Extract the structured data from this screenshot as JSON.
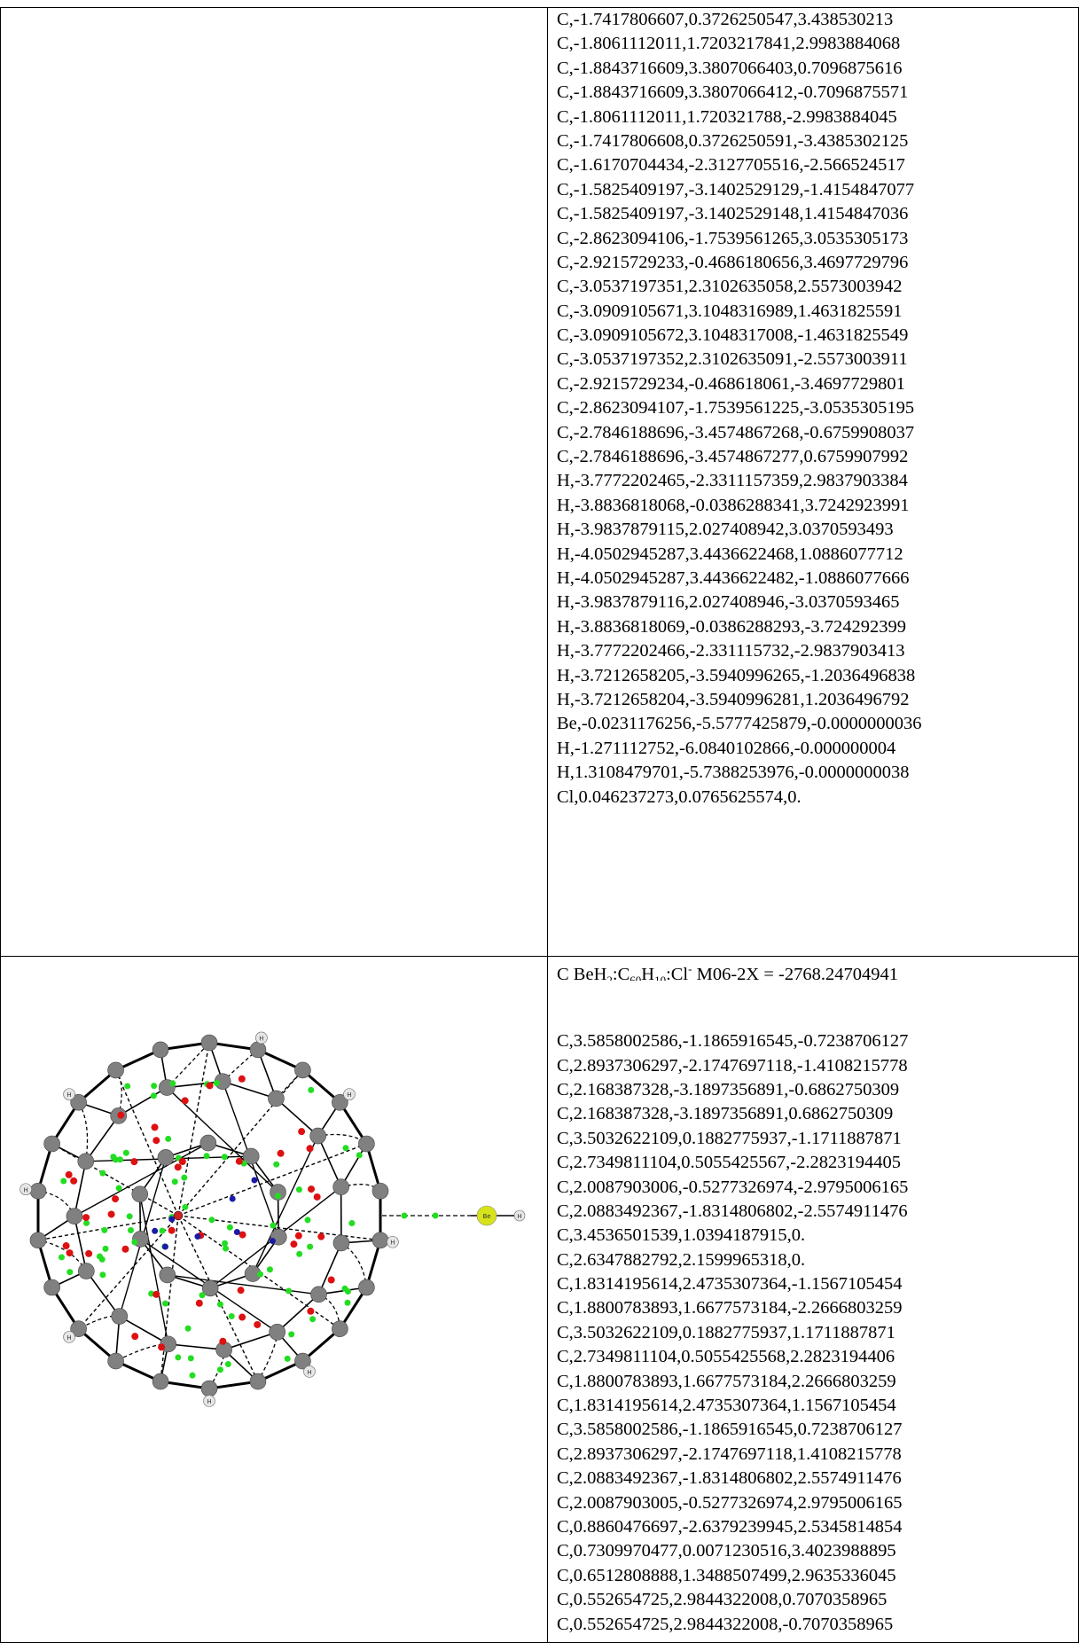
{
  "upper_coords": [
    "C,-1.7417806607,0.3726250547,3.438530213",
    "C,-1.8061112011,1.7203217841,2.9983884068",
    "C,-1.8843716609,3.3807066403,0.7096875616",
    "C,-1.8843716609,3.3807066412,-0.7096875571",
    "C,-1.8061112011,1.720321788,-2.9983884045",
    "C,-1.7417806608,0.3726250591,-3.4385302125",
    "C,-1.6170704434,-2.3127705516,-2.566524517",
    "C,-1.5825409197,-3.1402529129,-1.4154847077",
    "C,-1.5825409197,-3.1402529148,1.4154847036",
    "C,-2.8623094106,-1.7539561265,3.0535305173",
    "C,-2.9215729233,-0.4686180656,3.4697729796",
    "C,-3.0537197351,2.3102635058,2.5573003942",
    "C,-3.0909105671,3.1048316989,1.4631825591",
    "C,-3.0909105672,3.1048317008,-1.4631825549",
    "C,-3.0537197352,2.3102635091,-2.5573003911",
    "C,-2.9215729234,-0.468618061,-3.4697729801",
    "C,-2.8623094107,-1.7539561225,-3.0535305195",
    "C,-2.7846188696,-3.4574867268,-0.6759908037",
    "C,-2.7846188696,-3.4574867277,0.6759907992",
    "H,-3.7772202465,-2.3311157359,2.9837903384",
    "H,-3.8836818068,-0.0386288341,3.7242923991",
    "H,-3.9837879115,2.027408942,3.0370593493",
    "H,-4.0502945287,3.4436622468,1.0886077712",
    "H,-4.0502945287,3.4436622482,-1.0886077666",
    "H,-3.9837879116,2.027408946,-3.0370593465",
    "H,-3.8836818069,-0.0386288293,-3.724292399",
    "H,-3.7772202466,-2.331115732,-2.9837903413",
    "H,-3.7212658205,-3.5940996265,-1.2036496838",
    "H,-3.7212658204,-3.5940996281,1.2036496792",
    "Be,-0.0231176256,-5.5777425879,-0.0000000036",
    "H,-1.271112752,-6.0840102866,-0.000000004",
    "H,1.3108479701,-5.7388253976,-0.0000000038",
    "Cl,0.046237273,0.0765625574,0."
  ],
  "lower_title": {
    "prefix": "C  BeH",
    "sub1": "2",
    "mid1": ":C",
    "sub2": "60",
    "mid2": "H",
    "sub3": "10",
    "mid3": ":Cl",
    "sup1": "-",
    "suffix": " M06-2X = -2768.24704941"
  },
  "lower_coords": [
    "C,3.5858002586,-1.1865916545,-0.7238706127",
    "C,2.8937306297,-2.1747697118,-1.4108215778",
    "C,2.168387328,-3.1897356891,-0.6862750309",
    "C,2.168387328,-3.1897356891,0.6862750309",
    "C,3.5032622109,0.1882775937,-1.1711887871",
    "C,2.7349811104,0.5055425567,-2.2823194405",
    "C,2.0087903006,-0.5277326974,-2.9795006165",
    "C,2.0883492367,-1.8314806802,-2.5574911476",
    "C,3.4536501539,1.0394187915,0.",
    "C,2.6347882792,2.1599965318,0.",
    "C,1.8314195614,2.4735307364,-1.1567105454",
    "C,1.8800783893,1.6677573184,-2.2666803259",
    "C,3.5032622109,0.1882775937,1.1711887871",
    "C,2.7349811104,0.5055425568,2.2823194406",
    "C,1.8800783893,1.6677573184,2.2666803259",
    "C,1.8314195614,2.4735307364,1.1567105454",
    "C,3.5858002586,-1.1865916545,0.7238706127",
    "C,2.8937306297,-2.1747697118,1.4108215778",
    "C,2.0883492367,-1.8314806802,2.5574911476",
    "C,2.0087903005,-0.5277326974,2.9795006165",
    "C,0.8860476697,-2.6379239945,2.5345814854",
    "C,0.7309970477,0.0071230516,3.4023988895",
    "C,0.6512808888,1.3488507499,2.9635336045",
    "C,0.552654725,2.9844322008,0.7070358965",
    "C,0.552654725,2.9844322008,-0.7070358965"
  ],
  "atom_labels": {
    "hydrogen": "H",
    "beryllium": "Be"
  },
  "colors": {
    "carbon": "#808080",
    "hydrogen": "#e6e6e6",
    "beryllium": "#d6e21a",
    "bcp": "#22dd22",
    "rcp": "#dd1111",
    "ccp": "#1a1aa6"
  }
}
